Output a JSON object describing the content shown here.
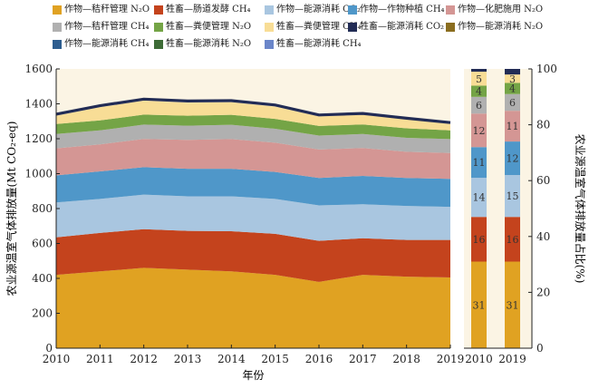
{
  "colors": {
    "background": "#fbf4e4",
    "axis": "#222222",
    "stacked_series": [
      "#e0a222",
      "#c4431d",
      "#a9c6e0",
      "#4f97c9",
      "#d49694",
      "#b0b0b0",
      "#74a446",
      "#f8dd96",
      "#222c55"
    ]
  },
  "legend": [
    {
      "label": "作物—秸秆管理 N₂O",
      "color": "#e0a222"
    },
    {
      "label": "牲畜—肠道发酵 CH₄",
      "color": "#c4431d"
    },
    {
      "label": "作物—能源消耗 CO₂",
      "color": "#a9c6e0"
    },
    {
      "label": "作物—作物种植 CH₄",
      "color": "#4f97c9"
    },
    {
      "label": "作物—化肥施用 N₂O",
      "color": "#d49694"
    },
    {
      "label": "作物—秸秆管理 CH₄",
      "color": "#b0b0b0"
    },
    {
      "label": "牲畜—粪便管理 N₂O",
      "color": "#74a446"
    },
    {
      "label": "牲畜—粪便管理 CH₄",
      "color": "#f8dd96"
    },
    {
      "label": "牲畜—能源消耗 CO₂",
      "color": "#222c55"
    },
    {
      "label": "作物—能源消耗 N₂O",
      "color": "#8a6d1f"
    },
    {
      "label": "作物—能源消耗 CH₄",
      "color": "#2d5d8f"
    },
    {
      "label": "牲畜—能源消耗 N₂O",
      "color": "#3d6b36"
    },
    {
      "label": "牲畜—能源消耗 CH₄",
      "color": "#6b86c9"
    }
  ],
  "chart_data": [
    {
      "type": "area",
      "stacked": true,
      "x": [
        2010,
        2011,
        2012,
        2013,
        2014,
        2015,
        2016,
        2017,
        2018,
        2019
      ],
      "xlabel": "年份",
      "ylabel": "农业源温室气体排放量(Mt CO₂-eq)",
      "ylim": [
        0,
        1600
      ],
      "yticks": [
        0,
        200,
        400,
        600,
        800,
        1000,
        1200,
        1400,
        1600
      ],
      "grid": false,
      "series": [
        {
          "name": "作物—秸秆管理 N₂O",
          "values": [
            420,
            440,
            460,
            450,
            440,
            420,
            380,
            420,
            410,
            405
          ]
        },
        {
          "name": "牲畜—肠道发酵 CH₄",
          "values": [
            215,
            220,
            222,
            222,
            230,
            235,
            235,
            210,
            210,
            215
          ]
        },
        {
          "name": "作物—能源消耗 CO₂",
          "values": [
            200,
            195,
            198,
            198,
            200,
            200,
            203,
            195,
            195,
            190
          ]
        },
        {
          "name": "作物—作物种植 CH₄",
          "values": [
            155,
            158,
            157,
            158,
            158,
            155,
            157,
            162,
            160,
            160
          ]
        },
        {
          "name": "作物—化肥施用 N₂O",
          "values": [
            155,
            155,
            162,
            165,
            170,
            167,
            163,
            160,
            150,
            148
          ]
        },
        {
          "name": "作物—秸秆管理 CH₄",
          "values": [
            82,
            80,
            82,
            82,
            82,
            80,
            80,
            80,
            80,
            80
          ]
        },
        {
          "name": "牲畜—粪便管理 N₂O",
          "values": [
            57,
            57,
            57,
            57,
            57,
            57,
            55,
            55,
            55,
            50
          ]
        },
        {
          "name": "牲畜—粪便管理 CH₄",
          "values": [
            48,
            75,
            80,
            75,
            72,
            70,
            55,
            55,
            50,
            37
          ]
        },
        {
          "name": "牲畜—能源消耗 CO₂",
          "values": [
            18,
            18,
            18,
            18,
            18,
            18,
            16,
            16,
            15,
            15
          ]
        }
      ]
    },
    {
      "type": "bar",
      "stacked": true,
      "categories": [
        2010,
        2019
      ],
      "ylabel": "农业源温室气体排放量占比(%)",
      "ylim": [
        0,
        100
      ],
      "yticks": [
        0,
        20,
        40,
        60,
        80,
        100
      ],
      "series": [
        {
          "name": "作物—秸秆管理 N₂O",
          "values": [
            31,
            31
          ]
        },
        {
          "name": "牲畜—肠道发酵 CH₄",
          "values": [
            16,
            16
          ]
        },
        {
          "name": "作物—能源消耗 CO₂",
          "values": [
            14,
            15
          ]
        },
        {
          "name": "作物—作物种植 CH₄",
          "values": [
            11,
            12
          ]
        },
        {
          "name": "作物—化肥施用 N₂O",
          "values": [
            12,
            11
          ]
        },
        {
          "name": "作物—秸秆管理 CH₄",
          "values": [
            6,
            6
          ]
        },
        {
          "name": "牲畜—粪便管理 N₂O",
          "values": [
            4,
            4
          ]
        },
        {
          "name": "牲畜—粪便管理 CH₄",
          "values": [
            5,
            3
          ]
        },
        {
          "name": "牲畜—能源消耗 CO₂",
          "values": [
            1,
            2
          ]
        }
      ]
    }
  ]
}
